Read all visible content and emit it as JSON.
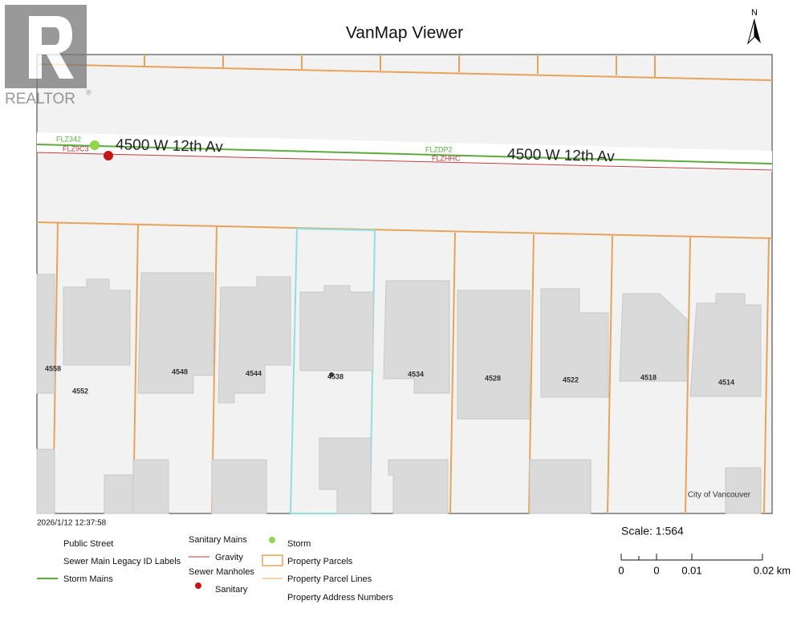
{
  "header": {
    "title": "VanMap Viewer",
    "north": "N"
  },
  "logo": {
    "text": "REALTOR",
    "mark": "®"
  },
  "map": {
    "streets": [
      "4500 W 12th Av",
      "4500 W 12th Av"
    ],
    "sewer_ids": [
      "FLZ342",
      "FLZ9C3",
      "FLZDP2",
      "FLZHHC"
    ],
    "addresses": [
      "4558",
      "4552",
      "4548",
      "4544",
      "4538",
      "4534",
      "4528",
      "4522",
      "4518",
      "4514"
    ],
    "credit": "City of Vancouver"
  },
  "timestamp": "2026/1/12 12:37:58",
  "legend": {
    "public_street": "Public Street",
    "legacy_labels": "Sewer Main Legacy ID Labels",
    "storm_mains": "Storm Mains",
    "sanitary_mains": {
      "title": "Sanitary Mains",
      "gravity": "Gravity"
    },
    "sewer_manholes": {
      "title": "Sewer Manholes",
      "sanitary": "Sanitary",
      "storm": "Storm"
    },
    "property_parcels": "Property Parcels",
    "property_parcel_lines": "Property Parcel Lines",
    "property_address_numbers": "Property Address Numbers"
  },
  "scale": {
    "label": "Scale: 1:564",
    "ticks": [
      "0",
      "0",
      "0.01",
      "0.02 km"
    ]
  }
}
